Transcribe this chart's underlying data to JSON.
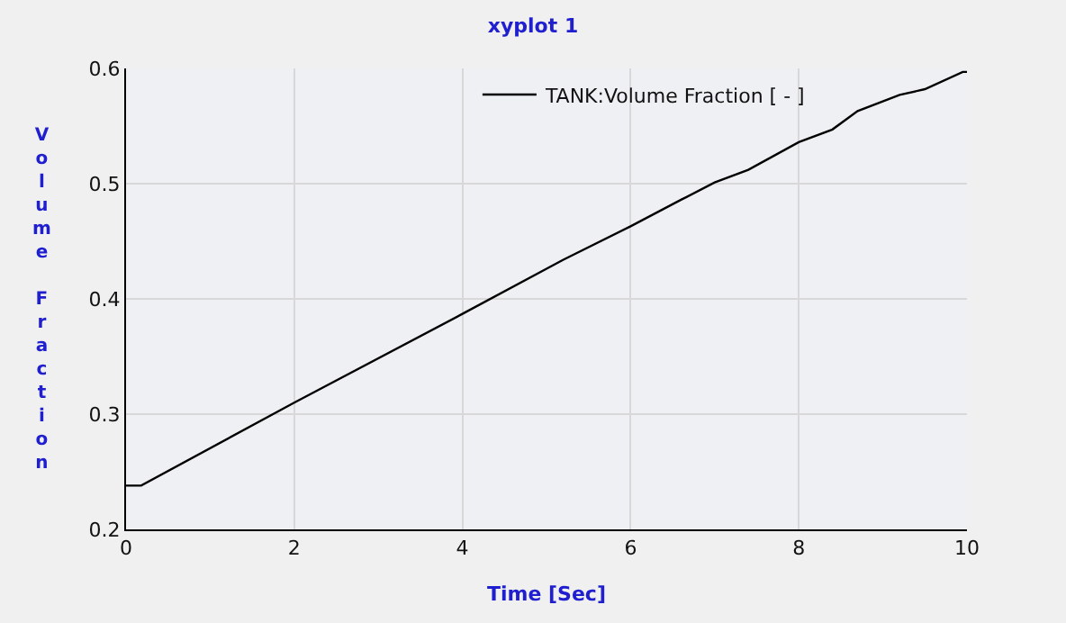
{
  "chart_data": {
    "type": "line",
    "title": "xyplot 1",
    "xlabel": "Time [Sec]",
    "ylabel": "Volume Fraction",
    "series": [
      {
        "name": "TANK:Volume Fraction [ - ]",
        "color": "#000000",
        "x": [
          0,
          0.18,
          2,
          4,
          5.2,
          6,
          6.6,
          7,
          7.4,
          8,
          8.4,
          8.7,
          9.2,
          9.5,
          9.95,
          10
        ],
        "values": [
          0.238,
          0.238,
          0.31,
          0.387,
          0.434,
          0.463,
          0.486,
          0.501,
          0.512,
          0.536,
          0.547,
          0.563,
          0.577,
          0.582,
          0.597,
          0.597
        ]
      }
    ],
    "xlim": [
      0,
      10
    ],
    "xticks": [
      0,
      2,
      4,
      6,
      8,
      10
    ],
    "ylim": [
      0.2,
      0.6
    ],
    "yticks": [
      0.2,
      0.3,
      0.4,
      0.5,
      0.6
    ],
    "grid": true,
    "legend": "top right",
    "marker": "none",
    "line_style": "solid"
  }
}
